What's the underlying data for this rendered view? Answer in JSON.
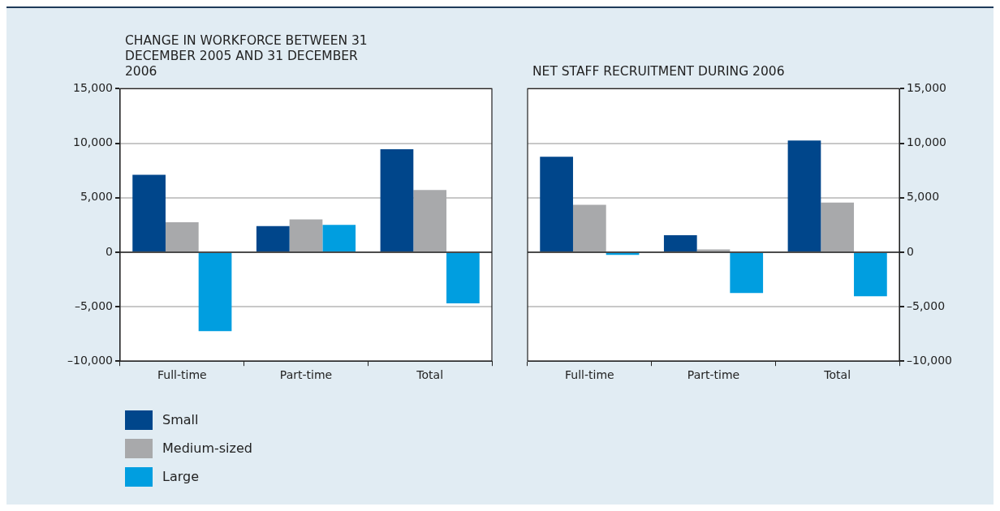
{
  "chart_data": [
    {
      "type": "bar",
      "title": "CHANGE IN WORKFORCE BETWEEN 31 DECEMBER 2005 AND 31 DECEMBER 2006",
      "categories": [
        "Full-time",
        "Part-time",
        "Total"
      ],
      "series": [
        {
          "name": "Small",
          "color": "#00468b",
          "values": [
            7100,
            2400,
            9450
          ]
        },
        {
          "name": "Medium-sized",
          "color": "#a8a9ab",
          "values": [
            2750,
            3000,
            5700
          ]
        },
        {
          "name": "Large",
          "color": "#009ee0",
          "values": [
            -7250,
            2500,
            -4700
          ]
        }
      ],
      "ylim": [
        -10000,
        15000
      ],
      "yticks": [
        {
          "value": -10000,
          "label": "–10,000"
        },
        {
          "value": -5000,
          "label": "–5,000"
        },
        {
          "value": 0,
          "label": "0"
        },
        {
          "value": 5000,
          "label": "5,000"
        },
        {
          "value": 10000,
          "label": "10,000"
        },
        {
          "value": 15000,
          "label": "15,000"
        }
      ],
      "grid": "y",
      "legend": "bottom"
    },
    {
      "type": "bar",
      "title": "NET STAFF RECRUITMENT DURING 2006",
      "categories": [
        "Full-time",
        "Part-time",
        "Total"
      ],
      "series": [
        {
          "color": "#00468b",
          "axis": "y2",
          "values": [
            8750,
            1550,
            10250
          ]
        },
        {
          "color": "#a8a9ab",
          "axis": "y2",
          "values": [
            4350,
            250,
            4550
          ]
        },
        {
          "color": "#009ee0",
          "axis": "y2",
          "values": [
            -250,
            -3750,
            -4050
          ]
        }
      ],
      "y2lim": [
        -10000,
        15000
      ],
      "y2ticks": [
        {
          "value": -10000,
          "label": "–10,000"
        },
        {
          "value": -5000,
          "label": "–5,000"
        },
        {
          "value": 0,
          "label": "0"
        },
        {
          "value": 5000,
          "label": "5,000"
        },
        {
          "value": 10000,
          "label": "10,000"
        },
        {
          "value": 15000,
          "label": "15,000"
        }
      ],
      "grid": "y"
    }
  ]
}
